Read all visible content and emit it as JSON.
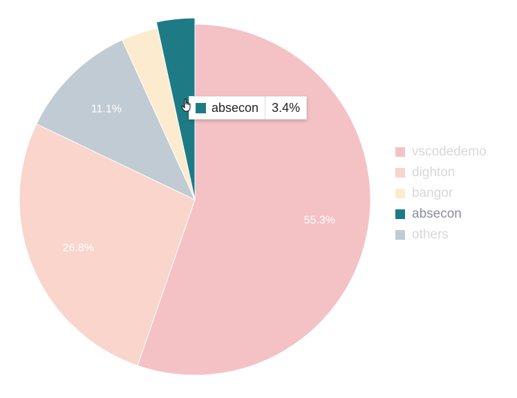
{
  "chart_data": {
    "type": "pie",
    "slices": [
      {
        "name": "vscodedemo",
        "value": 55.3,
        "label": "55.3%",
        "color": "#f4c2c5"
      },
      {
        "name": "dighton",
        "value": 26.8,
        "label": "26.8%",
        "color": "#f9d5cc"
      },
      {
        "name": "others",
        "value": 11.1,
        "label": "11.1%",
        "color": "#c0cbd3"
      },
      {
        "name": "bangor",
        "value": 3.4,
        "label": "",
        "color": "#fdebd0"
      },
      {
        "name": "absecon",
        "value": 3.4,
        "label": "",
        "color": "#1e7b86",
        "highlighted": true
      }
    ],
    "legend": {
      "placement": "right",
      "items": [
        {
          "name": "vscodedemo",
          "color": "#f4c2c5"
        },
        {
          "name": "dighton",
          "color": "#f9d5cc"
        },
        {
          "name": "bangor",
          "color": "#fdebd0"
        },
        {
          "name": "absecon",
          "color": "#1e7b86",
          "active": true
        },
        {
          "name": "others",
          "color": "#c0cbd3"
        }
      ]
    },
    "tooltip": {
      "name": "absecon",
      "value": "3.4%",
      "color": "#1e7b86"
    }
  }
}
